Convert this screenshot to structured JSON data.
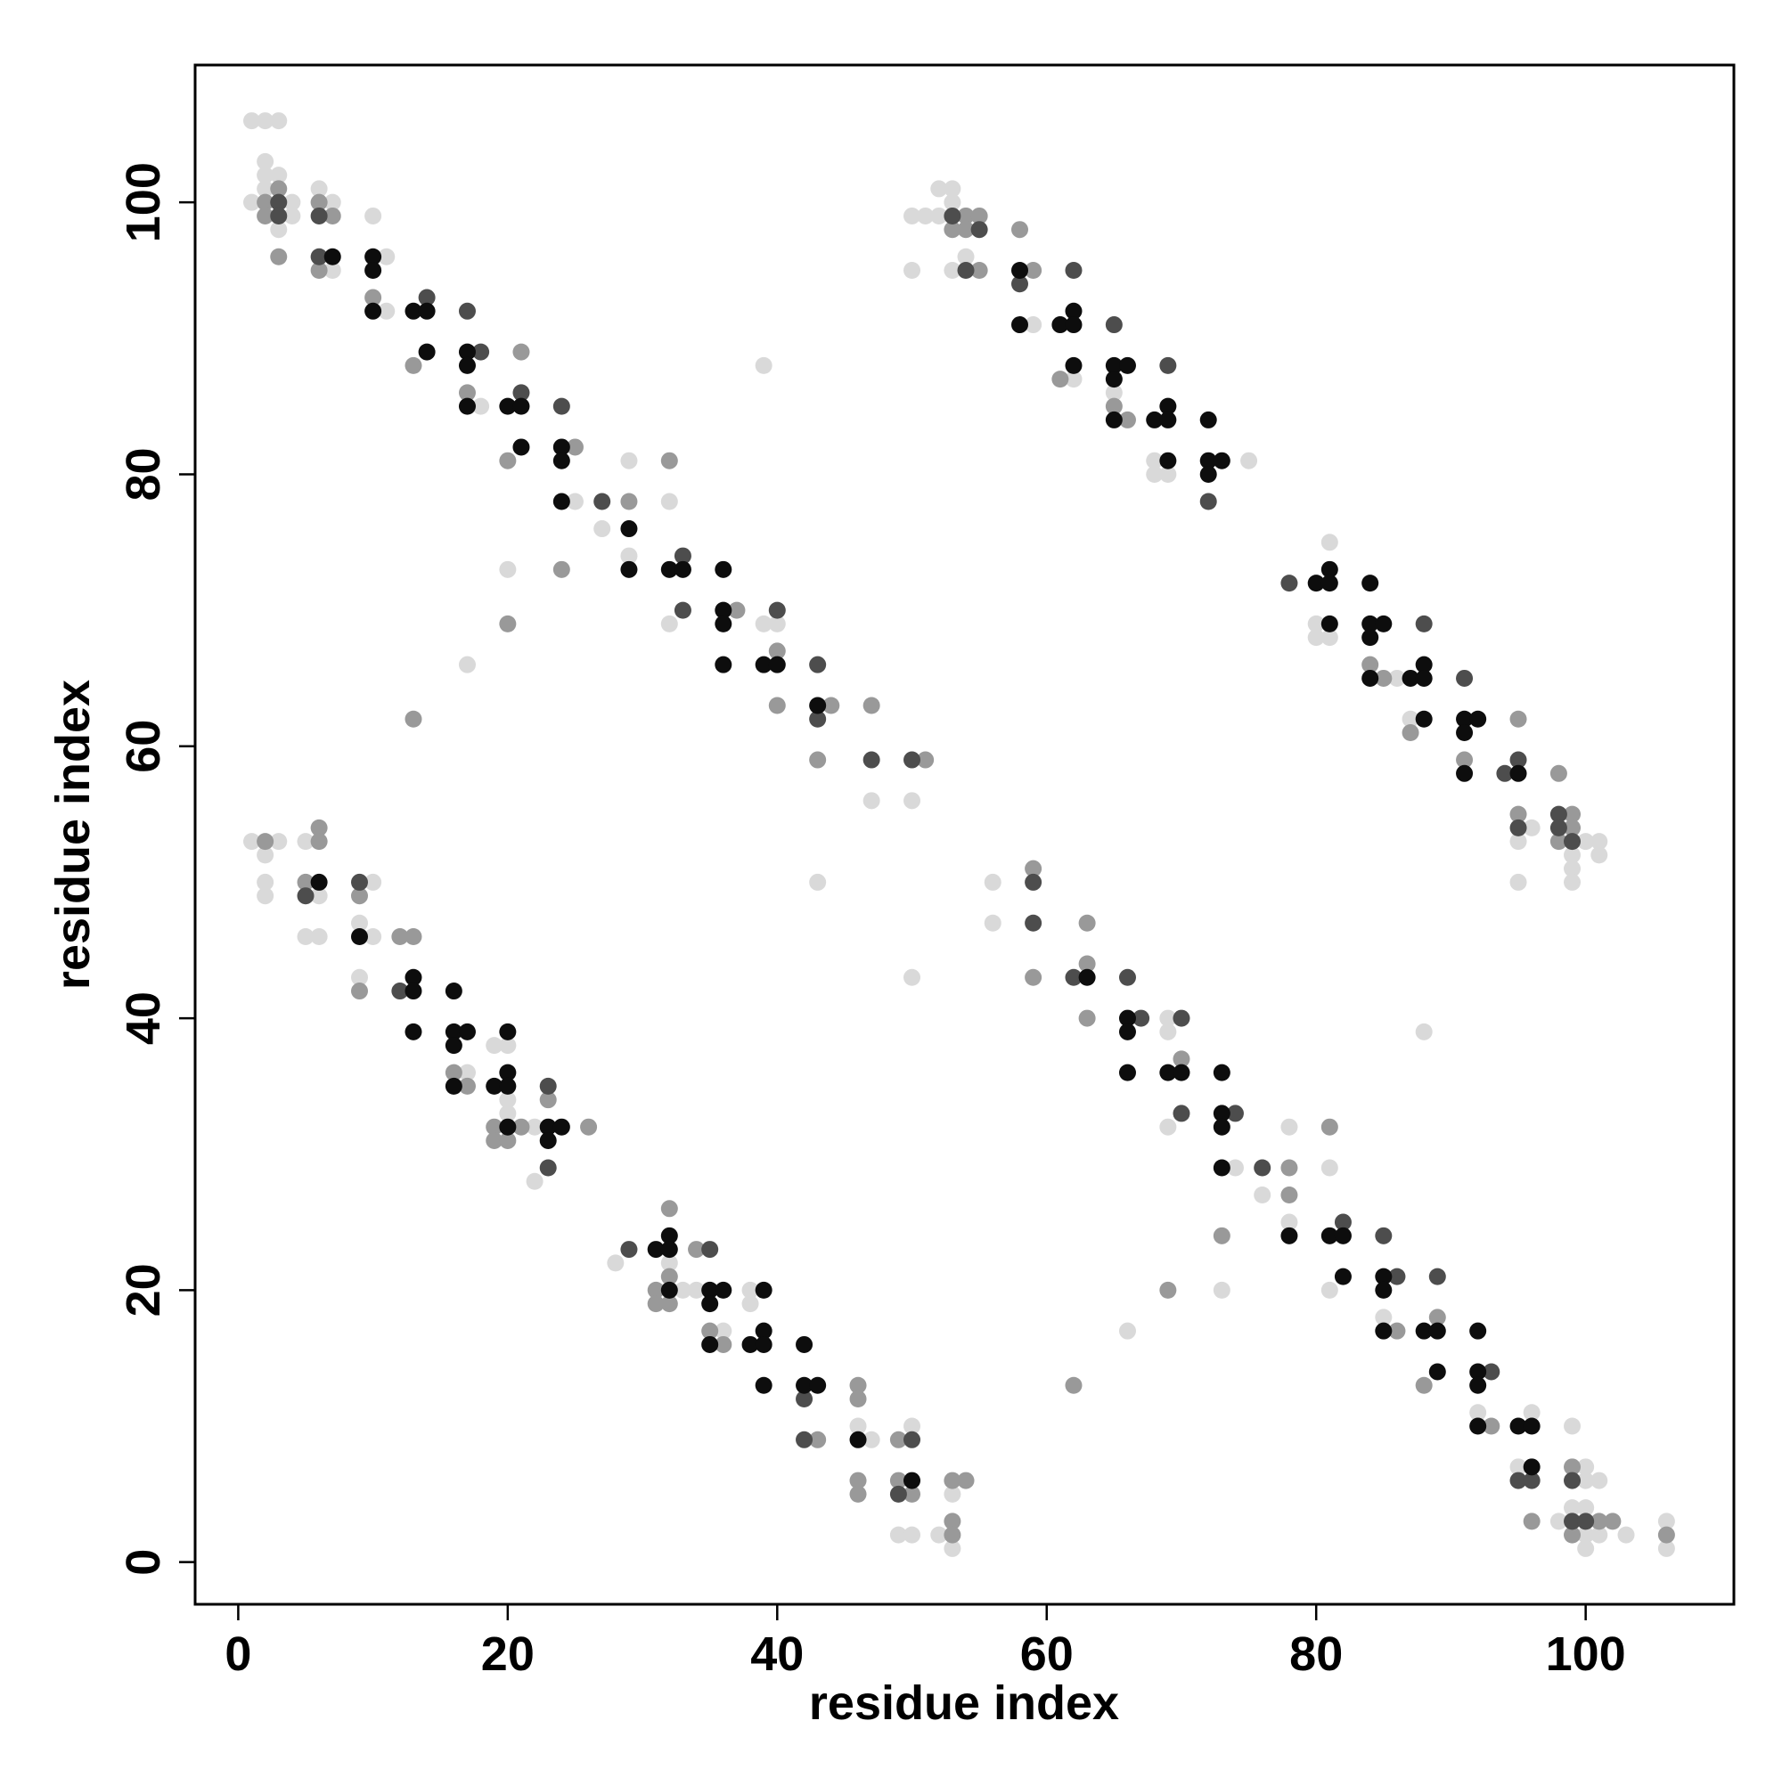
{
  "chart_data": {
    "type": "scatter",
    "xlabel": "residue index",
    "ylabel": "residue index",
    "xlim": [
      -3.2,
      111
    ],
    "ylim": [
      -3.1,
      110.1
    ],
    "xticks": [
      0,
      20,
      40,
      60,
      80,
      100
    ],
    "yticks": [
      0,
      20,
      40,
      60,
      80,
      100
    ],
    "grid": false,
    "series": [
      {
        "color": "#d9d9d9",
        "x": [
          1,
          2,
          3,
          1,
          2,
          2,
          2,
          3,
          3,
          4,
          4,
          6,
          7,
          7,
          10,
          11,
          11,
          18,
          25,
          27,
          29,
          29,
          32,
          32,
          39,
          40,
          47,
          50,
          20,
          17,
          39,
          43,
          50,
          50,
          51,
          52,
          52,
          53,
          53,
          50,
          53,
          54,
          59,
          62,
          65,
          68,
          68,
          69,
          75,
          81,
          80,
          80,
          81,
          86,
          87,
          96,
          95,
          95,
          99,
          99,
          99,
          100,
          101,
          101,
          1,
          3,
          2,
          2,
          2,
          5,
          6,
          5,
          6,
          10,
          9,
          10,
          9,
          17,
          19,
          20,
          20,
          20,
          22,
          22,
          28,
          32,
          33,
          34,
          36,
          38,
          38,
          46,
          47,
          50,
          49,
          50,
          52,
          53,
          53,
          56,
          56,
          69,
          69,
          69,
          74,
          76,
          78,
          78,
          81,
          81,
          85,
          92,
          96,
          95,
          98,
          99,
          100,
          100,
          101,
          99,
          100,
          100,
          101,
          100,
          103,
          106,
          106,
          66,
          73,
          88
        ],
        "y": [
          106,
          106,
          106,
          100,
          103,
          102,
          101,
          102,
          98,
          100,
          99,
          101,
          100,
          95,
          99,
          96,
          92,
          85,
          78,
          76,
          81,
          74,
          78,
          69,
          69,
          69,
          56,
          56,
          73,
          66,
          88,
          50,
          43,
          99,
          99,
          99,
          101,
          101,
          100,
          95,
          95,
          96,
          91,
          87,
          86,
          81,
          80,
          80,
          81,
          75,
          69,
          68,
          68,
          65,
          62,
          54,
          53,
          50,
          52,
          51,
          50,
          53,
          53,
          52,
          53,
          53,
          52,
          50,
          49,
          53,
          49,
          46,
          46,
          50,
          47,
          46,
          43,
          36,
          38,
          38,
          34,
          33,
          32,
          28,
          22,
          22,
          20,
          20,
          17,
          20,
          19,
          10,
          9,
          10,
          2,
          2,
          2,
          5,
          1,
          50,
          47,
          40,
          39,
          32,
          29,
          27,
          32,
          25,
          29,
          20,
          18,
          11,
          11,
          7,
          3,
          10,
          7,
          6,
          6,
          4,
          4,
          2,
          2,
          1,
          2,
          3,
          1,
          17,
          20,
          39
        ]
      },
      {
        "color": "#999999",
        "x": [
          2,
          2,
          3,
          3,
          6,
          7,
          6,
          10,
          13,
          17,
          21,
          20,
          25,
          29,
          32,
          37,
          40,
          40,
          44,
          43,
          47,
          51,
          20,
          13,
          24,
          53,
          54,
          54,
          55,
          55,
          58,
          59,
          61,
          65,
          66,
          84,
          85,
          87,
          91,
          95,
          95,
          98,
          98,
          99,
          99,
          2,
          6,
          6,
          5,
          9,
          9,
          12,
          13,
          16,
          17,
          19,
          21,
          19,
          20,
          23,
          26,
          32,
          32,
          31,
          31,
          32,
          34,
          35,
          36,
          46,
          46,
          43,
          46,
          46,
          49,
          49,
          50,
          53,
          54,
          53,
          53,
          59,
          59,
          63,
          63,
          63,
          70,
          78,
          78,
          81,
          86,
          89,
          88,
          93,
          96,
          99,
          101,
          102,
          99,
          106,
          62,
          69,
          73
        ],
        "y": [
          100,
          99,
          101,
          96,
          100,
          99,
          95,
          93,
          88,
          86,
          89,
          81,
          82,
          78,
          81,
          70,
          67,
          63,
          63,
          59,
          63,
          59,
          69,
          62,
          73,
          98,
          99,
          98,
          99,
          95,
          98,
          95,
          87,
          85,
          84,
          66,
          65,
          61,
          59,
          62,
          55,
          58,
          53,
          55,
          54,
          53,
          54,
          53,
          50,
          49,
          42,
          46,
          46,
          36,
          35,
          32,
          32,
          31,
          31,
          34,
          32,
          26,
          21,
          20,
          19,
          19,
          23,
          17,
          16,
          13,
          12,
          9,
          6,
          5,
          9,
          6,
          5,
          6,
          6,
          3,
          2,
          51,
          43,
          44,
          47,
          40,
          37,
          29,
          27,
          32,
          17,
          18,
          13,
          10,
          3,
          7,
          3,
          3,
          2,
          2,
          13,
          20,
          24
        ]
      },
      {
        "color": "#4d4d4d",
        "x": [
          3,
          3,
          6,
          6,
          14,
          17,
          18,
          21,
          24,
          27,
          33,
          33,
          40,
          43,
          43,
          47,
          50,
          53,
          55,
          54,
          58,
          62,
          65,
          69,
          72,
          78,
          88,
          91,
          94,
          95,
          95,
          98,
          98,
          99,
          5,
          9,
          12,
          23,
          23,
          29,
          35,
          42,
          42,
          50,
          49,
          59,
          59,
          62,
          66,
          67,
          70,
          70,
          74,
          76,
          82,
          85,
          86,
          89,
          93,
          95,
          96,
          99,
          99,
          100
        ],
        "y": [
          100,
          99,
          99,
          96,
          93,
          92,
          89,
          86,
          85,
          78,
          74,
          70,
          70,
          66,
          62,
          59,
          59,
          99,
          98,
          95,
          94,
          95,
          91,
          88,
          78,
          72,
          69,
          65,
          58,
          59,
          54,
          55,
          54,
          53,
          49,
          50,
          42,
          35,
          29,
          23,
          23,
          12,
          9,
          9,
          5,
          50,
          47,
          43,
          43,
          40,
          40,
          33,
          33,
          29,
          25,
          24,
          21,
          21,
          14,
          6,
          6,
          6,
          3,
          3
        ]
      },
      {
        "color": "#0d0d0d",
        "x": [
          10,
          10,
          10,
          13,
          14,
          14,
          17,
          17,
          17,
          20,
          21,
          21,
          24,
          24,
          24,
          29,
          29,
          32,
          33,
          36,
          36,
          36,
          36,
          39,
          40,
          43,
          7,
          58,
          58,
          61,
          62,
          62,
          62,
          65,
          66,
          65,
          65,
          68,
          69,
          69,
          69,
          72,
          72,
          72,
          73,
          80,
          81,
          81,
          81,
          84,
          84,
          85,
          84,
          84,
          87,
          88,
          88,
          88,
          91,
          92,
          91,
          91,
          95,
          6,
          9,
          13,
          13,
          13,
          16,
          16,
          17,
          16,
          16,
          20,
          20,
          19,
          20,
          20,
          23,
          24,
          23,
          31,
          32,
          32,
          32,
          35,
          36,
          35,
          35,
          39,
          38,
          39,
          39,
          39,
          42,
          42,
          43,
          46,
          50,
          63,
          66,
          66,
          66,
          69,
          70,
          73,
          73,
          73,
          73,
          78,
          81,
          82,
          82,
          85,
          85,
          85,
          88,
          89,
          89,
          92,
          92,
          92,
          92,
          95,
          96,
          96
        ],
        "y": [
          96,
          95,
          92,
          92,
          92,
          89,
          89,
          88,
          85,
          85,
          85,
          82,
          82,
          81,
          78,
          76,
          73,
          73,
          73,
          73,
          70,
          69,
          66,
          66,
          66,
          63,
          96,
          95,
          91,
          91,
          92,
          91,
          88,
          88,
          88,
          87,
          84,
          84,
          85,
          84,
          81,
          84,
          81,
          80,
          81,
          72,
          73,
          72,
          69,
          72,
          69,
          69,
          68,
          65,
          65,
          66,
          65,
          62,
          62,
          62,
          61,
          58,
          58,
          50,
          46,
          43,
          42,
          39,
          42,
          39,
          39,
          38,
          35,
          39,
          36,
          35,
          35,
          32,
          32,
          32,
          31,
          23,
          24,
          23,
          20,
          20,
          20,
          19,
          16,
          20,
          16,
          17,
          16,
          13,
          16,
          13,
          13,
          9,
          6,
          43,
          40,
          39,
          36,
          36,
          36,
          36,
          33,
          32,
          29,
          24,
          24,
          24,
          21,
          21,
          20,
          17,
          17,
          17,
          14,
          17,
          14,
          13,
          10,
          10,
          10,
          7
        ]
      }
    ]
  }
}
